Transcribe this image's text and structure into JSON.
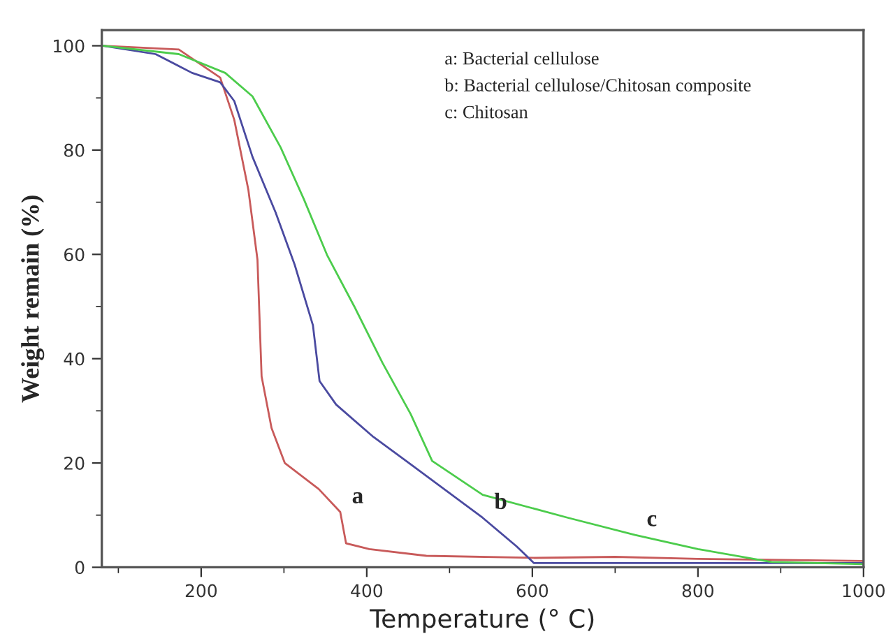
{
  "chart_data": {
    "type": "line",
    "xlabel": "Temperature (° C)",
    "ylabel": "Weight remain (%)",
    "xlim": [
      80,
      1000
    ],
    "ylim": [
      0,
      103
    ],
    "xticks": [
      200,
      400,
      600,
      800,
      1000
    ],
    "yticks": [
      0,
      20,
      40,
      60,
      80,
      100
    ],
    "grid": false,
    "legend": false,
    "marker": "none",
    "line_style": "solid",
    "series": [
      {
        "color": "#c85a5a",
        "x": [
          82,
          173,
          223,
          240,
          257,
          268,
          273,
          285,
          301,
          342,
          368,
          375,
          403,
          472,
          602,
          700,
          800,
          1000
        ],
        "values": [
          100,
          99.3,
          93.9,
          85.8,
          72.4,
          59,
          36.6,
          26.7,
          20,
          15,
          10.6,
          4.6,
          3.5,
          2.2,
          1.8,
          2,
          1.6,
          1.2
        ]
      },
      {
        "color": "#4a4aa0",
        "x": [
          82,
          145,
          189,
          223,
          240,
          262,
          290,
          313,
          335,
          343,
          363,
          408,
          451,
          540,
          581,
          602,
          800,
          1000
        ],
        "values": [
          100,
          98.4,
          94.8,
          93,
          89.4,
          78.7,
          68,
          58,
          46.4,
          35.7,
          31.2,
          25,
          20,
          9.5,
          4,
          0.8,
          0.8,
          0.8
        ]
      },
      {
        "color": "#4ccc4c",
        "x": [
          82,
          173,
          229,
          262,
          296,
          324,
          352,
          385,
          419,
          453,
          479,
          540,
          643,
          724,
          800,
          889,
          1000
        ],
        "values": [
          100,
          98.4,
          94.8,
          90.3,
          80.5,
          70.6,
          59.9,
          50,
          39.2,
          29.4,
          20.4,
          13.9,
          9.5,
          6.2,
          3.5,
          1,
          0.6
        ]
      }
    ],
    "annotations": [
      "a: Bacterial cellulose",
      "b: Bacterial cellulose/Chitosan composite",
      "c: Chitosan",
      {
        "text": "a",
        "x": 368,
        "y": 10.6
      },
      {
        "text": "b",
        "x": 540,
        "y": 9.5
      },
      {
        "text": "c",
        "x": 724,
        "y": 6.2
      }
    ]
  }
}
